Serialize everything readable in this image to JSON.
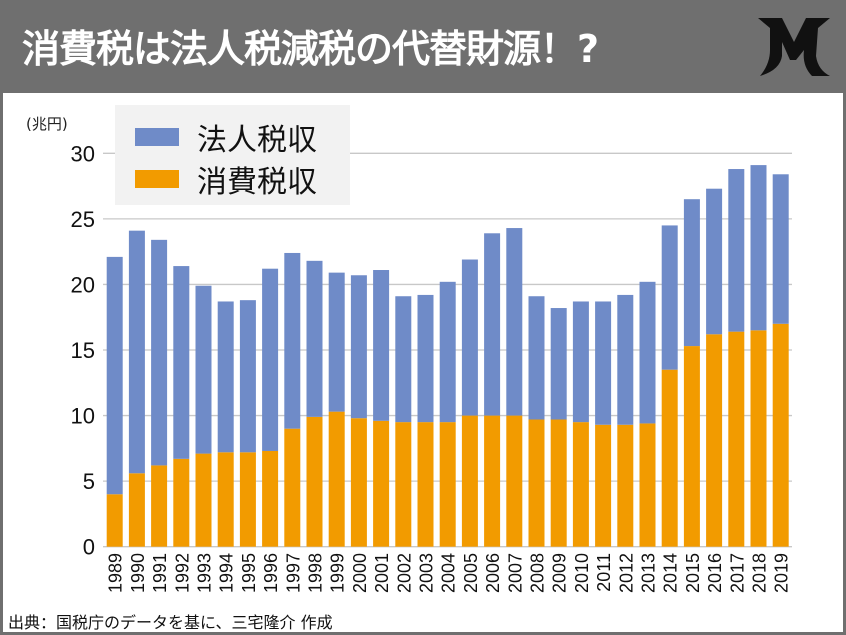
{
  "header": {
    "title": "消費税は法人税減税の代替財源！?",
    "logo_text": "M"
  },
  "footer": {
    "source": "出典：国税庁のデータを基に、三宅隆介 作成"
  },
  "colors": {
    "corporate": "#6f8bc8",
    "consumption": "#f29b00",
    "header_bg": "#6f6f6f",
    "grid": "#c8c8c8"
  },
  "chart_data": {
    "type": "bar",
    "stacked": true,
    "ylabel": "(兆円)",
    "ylim": [
      0,
      30
    ],
    "yticks": [
      0,
      5,
      10,
      15,
      20,
      25,
      30
    ],
    "grid": true,
    "legend_position": "top-left",
    "categories": [
      "1989",
      "1990",
      "1991",
      "1992",
      "1993",
      "1994",
      "1995",
      "1996",
      "1997",
      "1998",
      "1999",
      "2000",
      "2001",
      "2002",
      "2003",
      "2004",
      "2005",
      "2006",
      "2007",
      "2008",
      "2009",
      "2010",
      "2011",
      "2012",
      "2013",
      "2014",
      "2015",
      "2016",
      "2017",
      "2018",
      "2019"
    ],
    "series": [
      {
        "name": "消費税収",
        "color": "#f29b00",
        "values": [
          4.0,
          5.6,
          6.2,
          6.7,
          7.1,
          7.2,
          7.2,
          7.3,
          9.0,
          9.9,
          10.3,
          9.8,
          9.6,
          9.5,
          9.5,
          9.5,
          10.0,
          10.0,
          10.0,
          9.7,
          9.7,
          9.5,
          9.3,
          9.3,
          9.4,
          13.5,
          15.3,
          16.2,
          16.4,
          16.5,
          17.0
        ]
      },
      {
        "name": "法人税収",
        "color": "#6f8bc8",
        "values": [
          18.1,
          18.5,
          17.2,
          14.7,
          12.8,
          11.5,
          11.6,
          13.9,
          13.4,
          11.9,
          10.6,
          10.9,
          11.5,
          9.6,
          9.7,
          10.7,
          11.9,
          13.9,
          14.3,
          9.4,
          8.5,
          9.2,
          9.4,
          9.9,
          10.8,
          11.0,
          11.2,
          11.1,
          12.4,
          12.6,
          11.4
        ]
      }
    ]
  }
}
